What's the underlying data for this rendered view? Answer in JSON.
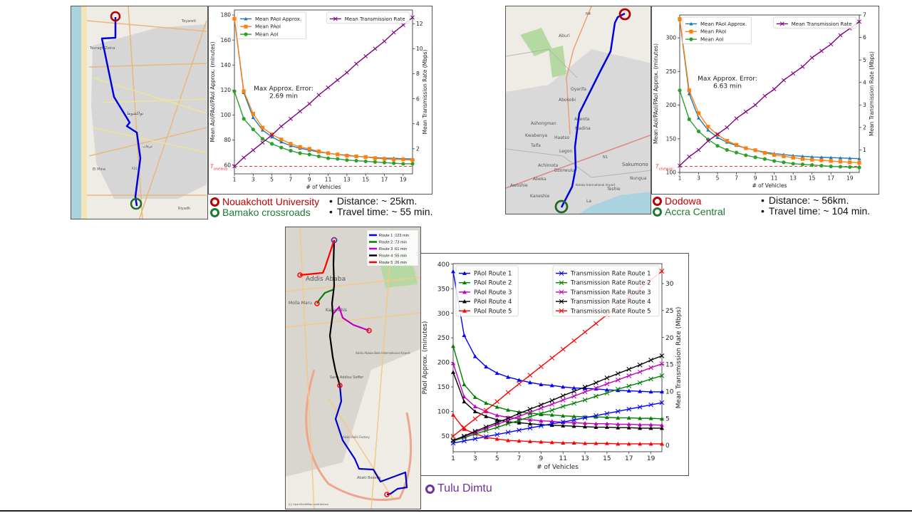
{
  "panels": {
    "top_left": {
      "origin": {
        "name": "Nouakchott University",
        "color": "#c00000"
      },
      "destination": {
        "name": "Bamako crossroads",
        "color": "#1e7b34"
      },
      "distance": "Distance: ~ 25km.",
      "travel_time": "Travel time: ~ 55 min.",
      "map_labels": [
        "Teyarett",
        "Tevragh Zeina",
        "El Mina",
        "Riyadh",
        "نواكشوط",
        "عرفات",
        "R22"
      ]
    },
    "top_right": {
      "origin": {
        "name": "Dodowa",
        "color": "#c00000"
      },
      "destination": {
        "name": "Accra Central",
        "color": "#1e7b34"
      },
      "distance": "Distance: ~ 56km.",
      "travel_time": "Travel time: ~ 104 min.",
      "map_labels": [
        "N4",
        "Aburi",
        "Oyarifa",
        "Abokobi",
        "Adenta",
        "Madina",
        "Ashongman",
        "Kwabenya",
        "Haatso",
        "Taifa",
        "Legon",
        "Achimota",
        "Dzorwulu",
        "Abeka",
        "Awoshie",
        "Kaneshie",
        "Teshie",
        "Nungua",
        "Sakumono",
        "La",
        "N1",
        "Kotoka International Airport"
      ]
    },
    "bottom": {
      "origin": {
        "name": "Tulu Dimtu",
        "color": "#7030a0"
      },
      "map_legend": [
        {
          "label": "Route 1 :123 min",
          "color": "#0000ff"
        },
        {
          "label": "Route 2 :73 min",
          "color": "#008000"
        },
        {
          "label": "Route 3 :61 min",
          "color": "#bf00bf"
        },
        {
          "label": "Route 4 :55 min",
          "color": "#000000"
        },
        {
          "label": "Route 5 :26 min",
          "color": "#ff0000"
        }
      ],
      "map_labels": [
        "Addis Ababa",
        "Molla Maru",
        "Kazanchis",
        "Addis Ababa Bole International Airport",
        "Saris Addisu Seffer",
        "Akaki Kaliti Factory",
        "Akaki Beseka",
        "(C) OpenStreetMap contributors"
      ]
    }
  },
  "chart_data": [
    {
      "type": "line",
      "xlabel": "# of Vehicles",
      "ylabel": "Mean AoI/PAoI/PAoI Approx. (minutes)",
      "y2label": "Mean Transmission Rate (Mbps)",
      "x": [
        1,
        2,
        3,
        4,
        5,
        6,
        7,
        8,
        9,
        10,
        11,
        12,
        13,
        14,
        15,
        16,
        17,
        18,
        19,
        20
      ],
      "xlim": [
        1,
        20
      ],
      "xticks": [
        1,
        3,
        5,
        7,
        9,
        11,
        13,
        15,
        17,
        19
      ],
      "ylim": [
        53,
        184
      ],
      "yticks": [
        60,
        80,
        100,
        120,
        140,
        160,
        180
      ],
      "y2lim": [
        0,
        13.1
      ],
      "y2ticks": [
        2,
        4,
        6,
        8,
        10,
        12
      ],
      "grid": false,
      "threshold": {
        "label": "T",
        "sub": "oneway",
        "value": 59,
        "color": "#ff3333"
      },
      "annotation": [
        "Max Approx. Error:",
        "2.69 min"
      ],
      "legend_left": "top-left",
      "legend_right": "top-right",
      "series": [
        {
          "name": "Mean PAoI Approx.",
          "axis": "left",
          "color": "#1f77b4",
          "marker": "triangle",
          "values": [
            177,
            118,
            98,
            88,
            82.5,
            78.5,
            75.5,
            73.5,
            72,
            70.5,
            69.5,
            68.5,
            68,
            67,
            66.5,
            66,
            65.5,
            65.5,
            65,
            65
          ]
        },
        {
          "name": "Mean PAoI",
          "axis": "left",
          "color": "#ff7f0e",
          "marker": "square",
          "values": [
            177,
            119,
            101,
            90,
            84.5,
            80.5,
            77,
            74.5,
            73,
            71,
            69.5,
            68.5,
            67.5,
            67,
            66.5,
            65.5,
            65,
            64.5,
            64.5,
            64
          ]
        },
        {
          "name": "Mean AoI",
          "axis": "left",
          "color": "#2ca02c",
          "marker": "circle",
          "values": [
            119,
            97,
            88.5,
            81,
            77,
            74,
            71.5,
            69.5,
            68.5,
            67,
            65.5,
            65,
            64,
            63.5,
            63,
            62.5,
            62,
            61.5,
            61,
            61
          ]
        },
        {
          "name": "Mean Transmission Rate",
          "axis": "right",
          "color": "#800080",
          "marker": "x",
          "values": [
            0.6,
            1.3,
            1.9,
            2.5,
            3.1,
            3.8,
            4.4,
            5.0,
            5.6,
            6.3,
            6.9,
            7.5,
            8.1,
            8.8,
            9.4,
            10.0,
            10.6,
            11.3,
            11.9,
            12.5
          ]
        }
      ]
    },
    {
      "type": "line",
      "xlabel": "# of Vehicles",
      "ylabel": "Mean AoI/PAoI/PAoI Approx. (minutes)",
      "y2label": "Mean Transmission Rate (Mbps)",
      "x": [
        1,
        2,
        3,
        4,
        5,
        6,
        7,
        8,
        9,
        10,
        11,
        12,
        13,
        14,
        15,
        16,
        17,
        18,
        19,
        20
      ],
      "xlim": [
        1,
        20
      ],
      "xticks": [
        1,
        3,
        5,
        7,
        9,
        11,
        13,
        15,
        17,
        19
      ],
      "ylim": [
        100,
        334
      ],
      "yticks": [
        100,
        150,
        200,
        250,
        300
      ],
      "y2lim": [
        0,
        7
      ],
      "y2ticks": [
        1,
        2,
        3,
        4,
        5,
        6,
        7
      ],
      "grid": false,
      "threshold": {
        "label": "T",
        "sub": "oneway",
        "value": 109,
        "color": "#ff3333"
      },
      "annotation": [
        "Max Approx. Error:",
        "6.63 min"
      ],
      "legend_left": "top-left",
      "legend_right": "top-right",
      "series": [
        {
          "name": "Mean PAoI Approx.",
          "axis": "left",
          "color": "#1f77b4",
          "marker": "triangle",
          "values": [
            327,
            217,
            181,
            163,
            152,
            145,
            140,
            136,
            133,
            130,
            128,
            126.5,
            125,
            124,
            123,
            122.5,
            122,
            121.5,
            121,
            120.5
          ]
        },
        {
          "name": "Mean PAoI",
          "axis": "left",
          "color": "#ff7f0e",
          "marker": "square",
          "values": [
            328,
            222,
            188,
            168,
            156,
            147,
            141,
            136,
            133,
            129,
            126,
            124,
            122,
            120,
            119,
            118,
            117,
            116,
            115,
            114.5
          ]
        },
        {
          "name": "Mean AoI",
          "axis": "left",
          "color": "#2ca02c",
          "marker": "circle",
          "values": [
            222,
            179,
            161,
            149,
            139.5,
            133.5,
            129.5,
            125.5,
            122.5,
            120,
            117,
            115,
            113,
            112,
            111,
            110,
            109,
            108.5,
            108,
            107.5
          ]
        },
        {
          "name": "Mean Transmission Rate",
          "axis": "right",
          "color": "#800080",
          "marker": "x",
          "values": [
            0.3,
            0.7,
            1.0,
            1.4,
            1.7,
            2.0,
            2.4,
            2.7,
            3.0,
            3.4,
            3.7,
            4.1,
            4.4,
            4.7,
            5.1,
            5.4,
            5.7,
            6.1,
            6.4,
            6.7
          ]
        }
      ]
    },
    {
      "type": "line",
      "xlabel": "# of Vehicles",
      "ylabel": "PAoI Approx. (minutes)",
      "y2label": "Mean Transmission Rate (Mbps)",
      "x": [
        1,
        2,
        3,
        4,
        5,
        6,
        7,
        8,
        9,
        10,
        11,
        12,
        13,
        14,
        15,
        16,
        17,
        18,
        19,
        20
      ],
      "xlim": [
        1,
        20
      ],
      "xticks": [
        1,
        3,
        5,
        7,
        9,
        11,
        13,
        15,
        17,
        19
      ],
      "ylim": [
        18,
        401
      ],
      "yticks": [
        50,
        100,
        150,
        200,
        250,
        300,
        350,
        400
      ],
      "y2lim": [
        -1.2,
        33.7
      ],
      "y2ticks": [
        0,
        5,
        10,
        15,
        20,
        25,
        30
      ],
      "grid": false,
      "legend_left": "top-left",
      "legend_right": "top-right",
      "series": [
        {
          "name": "PAoI Route 1",
          "axis": "left",
          "color": "#0000ff",
          "marker": "triangle",
          "values": [
            385,
            255,
            212,
            191,
            178,
            170,
            164,
            159,
            155,
            153,
            150,
            148,
            147,
            146,
            144,
            143,
            142,
            141,
            140,
            140
          ]
        },
        {
          "name": "PAoI Route 2",
          "axis": "left",
          "color": "#008000",
          "marker": "triangle",
          "values": [
            233,
            155,
            129,
            117,
            109,
            103,
            99,
            97,
            94,
            93,
            91,
            90,
            89,
            89,
            88,
            87,
            87,
            86,
            86,
            85
          ]
        },
        {
          "name": "PAoI Route 3",
          "axis": "left",
          "color": "#bf00bf",
          "marker": "triangle",
          "values": [
            198,
            130,
            110,
            100,
            92,
            88,
            85,
            83,
            81,
            80,
            78,
            77,
            76,
            75,
            75,
            74,
            74,
            73,
            73,
            72
          ]
        },
        {
          "name": "PAoI Route 4",
          "axis": "left",
          "color": "#000000",
          "marker": "triangle",
          "values": [
            180,
            120,
            100,
            90,
            83,
            79,
            77,
            75,
            73,
            72,
            71,
            70,
            69,
            68,
            68,
            67,
            67,
            66,
            66,
            66
          ]
        },
        {
          "name": "PAoI Route 5",
          "axis": "left",
          "color": "#ff0000",
          "marker": "triangle",
          "values": [
            93,
            64,
            55,
            47,
            44,
            41,
            40,
            39,
            38,
            37,
            36,
            36,
            35,
            35,
            35,
            34,
            34,
            34,
            34,
            34
          ]
        },
        {
          "name": "Transmission Rate Route 1",
          "axis": "right",
          "color": "#0000ff",
          "marker": "x",
          "values": [
            0.4,
            0.8,
            1.2,
            1.6,
            2.0,
            2.4,
            2.8,
            3.2,
            3.6,
            4.0,
            4.3,
            4.7,
            5.1,
            5.5,
            5.9,
            6.3,
            6.7,
            7.1,
            7.5,
            7.9
          ]
        },
        {
          "name": "Transmission Rate Route 2",
          "axis": "right",
          "color": "#008000",
          "marker": "x",
          "values": [
            0.8,
            1.4,
            2.1,
            2.7,
            3.3,
            4.0,
            4.6,
            5.3,
            5.9,
            6.5,
            7.2,
            7.8,
            8.4,
            9.1,
            9.7,
            10.4,
            11.0,
            11.6,
            12.3,
            12.9
          ]
        },
        {
          "name": "Transmission Rate Route 3",
          "axis": "right",
          "color": "#bf00bf",
          "marker": "x",
          "values": [
            0.9,
            1.6,
            2.4,
            3.1,
            3.9,
            4.6,
            5.4,
            6.1,
            6.9,
            7.6,
            8.4,
            9.1,
            9.9,
            10.6,
            11.4,
            12.1,
            12.9,
            13.6,
            14.4,
            15.1
          ]
        },
        {
          "name": "Transmission Rate Route 4",
          "axis": "right",
          "color": "#000000",
          "marker": "x",
          "values": [
            0.9,
            1.7,
            2.6,
            3.4,
            4.2,
            5.0,
            5.9,
            6.7,
            7.5,
            8.3,
            9.2,
            10.0,
            10.8,
            11.6,
            12.5,
            13.3,
            14.1,
            14.9,
            15.8,
            16.6
          ]
        },
        {
          "name": "Transmission Rate Route 5",
          "axis": "right",
          "color": "#ff0000",
          "marker": "x",
          "values": [
            1.7,
            3.3,
            4.9,
            6.5,
            8.1,
            9.8,
            11.4,
            13.0,
            14.6,
            16.2,
            17.8,
            19.4,
            21.0,
            22.6,
            24.2,
            25.9,
            27.5,
            29.1,
            30.7,
            32.3
          ]
        }
      ]
    }
  ]
}
